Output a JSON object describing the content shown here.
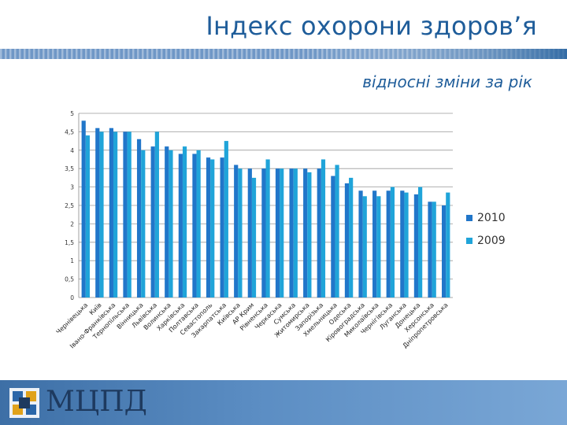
{
  "slide": {
    "title": "Індекс охорони здоров’я",
    "subtitle": "відносні зміни за рік",
    "logo_text": "МЦПД"
  },
  "colors": {
    "series_2010": "#2176c9",
    "series_2009": "#20a4d9",
    "title": "#1f5d9a"
  },
  "chart_data": {
    "type": "bar",
    "title": "",
    "xlabel": "",
    "ylabel": "",
    "ylim": [
      0,
      5
    ],
    "yticks": [
      "0",
      "0,5",
      "1",
      "1,5",
      "2",
      "2,5",
      "3",
      "3,5",
      "4",
      "4,5",
      "5"
    ],
    "grid": true,
    "legend_position": "right",
    "categories": [
      "Чернівецька",
      "Київ",
      "Івано-Франківська",
      "Тернопільська",
      "Вінницька",
      "Львівська",
      "Волинська",
      "Харківська",
      "Полтавська",
      "Севастополь",
      "Закарпатська",
      "Київська",
      "АР Крим",
      "Рівненська",
      "Черкаська",
      "Сумська",
      "Житомирська",
      "Запорізька",
      "Хмельницька",
      "Одеська",
      "Кіровоградська",
      "Миколаївська",
      "Чернігівська",
      "Луганська",
      "Донецька",
      "Херсонська",
      "Дніпропетровська"
    ],
    "series": [
      {
        "name": "2010",
        "values": [
          4.8,
          4.6,
          4.6,
          4.5,
          4.3,
          4.1,
          4.1,
          3.9,
          3.9,
          3.8,
          3.8,
          3.6,
          3.5,
          3.5,
          3.5,
          3.5,
          3.5,
          3.5,
          3.3,
          3.1,
          2.9,
          2.9,
          2.9,
          2.9,
          2.8,
          2.6,
          2.5
        ]
      },
      {
        "name": "2009",
        "values": [
          4.4,
          4.5,
          4.5,
          4.5,
          4.0,
          4.5,
          4.0,
          4.1,
          4.0,
          3.75,
          4.25,
          3.5,
          3.25,
          3.75,
          3.5,
          3.5,
          3.4,
          3.75,
          3.6,
          3.25,
          2.75,
          2.75,
          3.0,
          2.85,
          3.0,
          2.6,
          2.85
        ]
      }
    ]
  }
}
